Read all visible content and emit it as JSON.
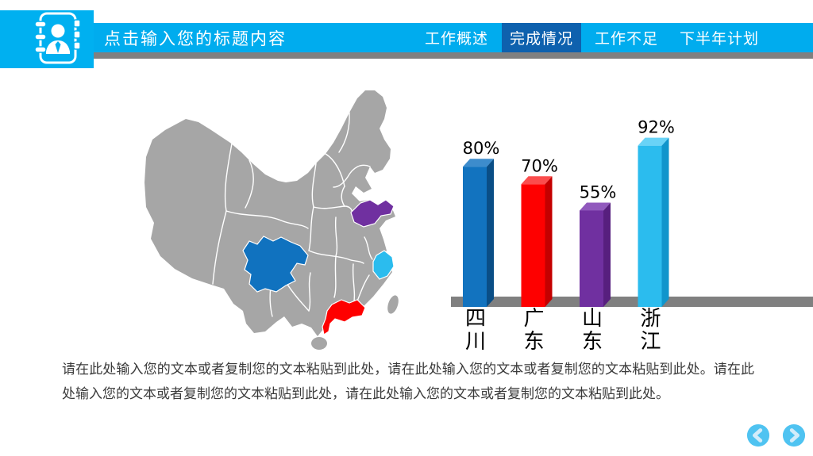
{
  "header": {
    "title": "点击输入您的标题内容",
    "tabs": [
      {
        "label": "工作概述",
        "active": false
      },
      {
        "label": "完成情况",
        "active": true
      },
      {
        "label": "工作不足",
        "active": false
      },
      {
        "label": "下半年计划",
        "active": false
      }
    ],
    "colors": {
      "logo_block": "#00B0F0",
      "bar": "#00ACEE",
      "active_tab": "#0E61AE",
      "shadow": "#808080",
      "text": "#FFFFFF"
    }
  },
  "map": {
    "base_color": "#A6A6A6",
    "border_color": "#FFFFFF",
    "highlights": [
      {
        "province": "四川",
        "color": "#1072BF"
      },
      {
        "province": "广东",
        "color": "#FE0000"
      },
      {
        "province": "山东",
        "color": "#7030A0"
      },
      {
        "province": "浙江",
        "color": "#2BBCEE"
      }
    ]
  },
  "chart_data": {
    "type": "bar",
    "categories": [
      "四川",
      "广东",
      "山东",
      "浙江"
    ],
    "values": [
      80,
      70,
      55,
      92
    ],
    "value_labels": [
      "80%",
      "70%",
      "55%",
      "92%"
    ],
    "unit": "%",
    "ylim": [
      0,
      100
    ],
    "grid": false,
    "category_label_orientation": "vertical-stacked",
    "baseline_color": "#808080",
    "label_color": "#000000",
    "bar_colors": [
      {
        "front": "#1273BF",
        "top": "#3D8CCC",
        "side": "#0A4E86"
      },
      {
        "front": "#FE0000",
        "top": "#FB4D4D",
        "side": "#C40000"
      },
      {
        "front": "#7030A0",
        "top": "#9159BD",
        "side": "#571F7E"
      },
      {
        "front": "#2BBCEE",
        "top": "#69D3F7",
        "side": "#1095CC"
      }
    ]
  },
  "body": {
    "paragraph": "请在此处输入您的文本或者复制您的文本粘贴到此处，请在此处输入您的文本或者复制您的文本粘贴到此处。请在此处输入您的文本或者复制您的文本粘贴到此处，请在此处输入您的文本或者复制您的文本粘贴到此处。"
  },
  "footer": {
    "button_color": "#4FC3F1",
    "arrow_color": "#D2ECFA"
  }
}
